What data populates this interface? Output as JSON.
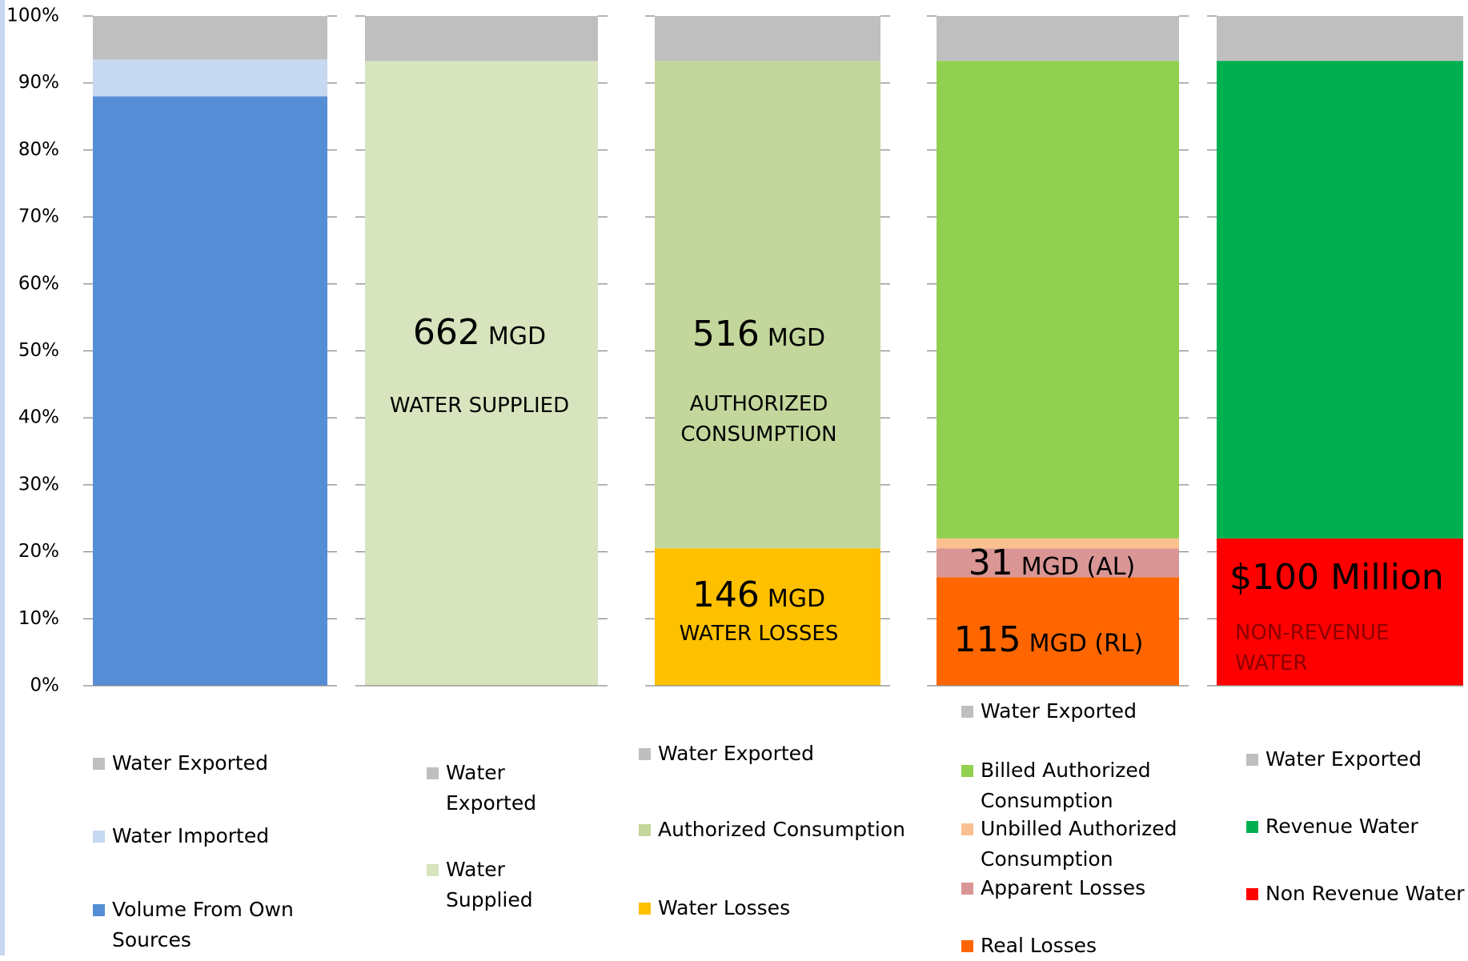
{
  "chart_data": {
    "type": "stacked_bar",
    "ylim": [
      0,
      100
    ],
    "yticks": [
      {
        "value": 0,
        "label": "0%"
      },
      {
        "value": 10,
        "label": "10%"
      },
      {
        "value": 20,
        "label": "20%"
      },
      {
        "value": 30,
        "label": "30%"
      },
      {
        "value": 40,
        "label": "40%"
      },
      {
        "value": 50,
        "label": "50%"
      },
      {
        "value": 60,
        "label": "60%"
      },
      {
        "value": 70,
        "label": "70%"
      },
      {
        "value": 80,
        "label": "80%"
      },
      {
        "value": 90,
        "label": "90%"
      },
      {
        "value": 100,
        "label": "100%"
      }
    ],
    "panels": [
      {
        "series": [
          {
            "name": "Volume From Own Sources",
            "color": "#558ed5",
            "value": 88
          },
          {
            "name": "Water Imported",
            "color": "#c6d9f1",
            "value": 5.5
          },
          {
            "name": "Water Exported",
            "color": "#bfbfbf",
            "value": 6.5
          }
        ],
        "annotations": []
      },
      {
        "series": [
          {
            "name": "Water Supplied",
            "color": "#d7e4bd",
            "value": 93.3
          },
          {
            "name": "Water Exported",
            "color": "#bfbfbf",
            "value": 6.7
          }
        ],
        "annotations": [
          {
            "number": "662",
            "unit": "MGD"
          },
          {
            "text": "WATER SUPPLIED"
          }
        ]
      },
      {
        "series": [
          {
            "name": "Water Losses",
            "color": "#ffc000",
            "value": 20.5
          },
          {
            "name": "Authorized Consumption",
            "color": "#c3d69b",
            "value": 72.8
          },
          {
            "name": "Water Exported",
            "color": "#bfbfbf",
            "value": 6.7
          }
        ],
        "annotations": [
          {
            "number": "516",
            "unit": "MGD"
          },
          {
            "text": "AUTHORIZED CONSUMPTION"
          },
          {
            "number": "146",
            "unit": "MGD"
          },
          {
            "text": "WATER LOSSES"
          }
        ]
      },
      {
        "series": [
          {
            "name": "Real Losses",
            "color": "#ff6600",
            "value": 16.2
          },
          {
            "name": "Apparent Losses",
            "color": "#d99694",
            "value": 4.3
          },
          {
            "name": "Unbilled Authorized Consumption",
            "color": "#fac090",
            "value": 1.5
          },
          {
            "name": "Billed Authorized Consumption",
            "color": "#92d050",
            "value": 71.3
          },
          {
            "name": "Water Exported",
            "color": "#bfbfbf",
            "value": 6.7
          }
        ],
        "annotations": [
          {
            "number": "31",
            "unit": "MGD (AL)"
          },
          {
            "number": "115",
            "unit": "MGD (RL)"
          }
        ]
      },
      {
        "series": [
          {
            "name": "Non Revenue Water",
            "color": "#ff0000",
            "value": 22
          },
          {
            "name": "Revenue Water",
            "color": "#00b050",
            "value": 71.3
          },
          {
            "name": "Water Exported",
            "color": "#bfbfbf",
            "value": 6.7
          }
        ],
        "annotations": [
          {
            "text": "$100 Million"
          },
          {
            "text": "NON-REVENUE WATER"
          }
        ]
      }
    ]
  }
}
